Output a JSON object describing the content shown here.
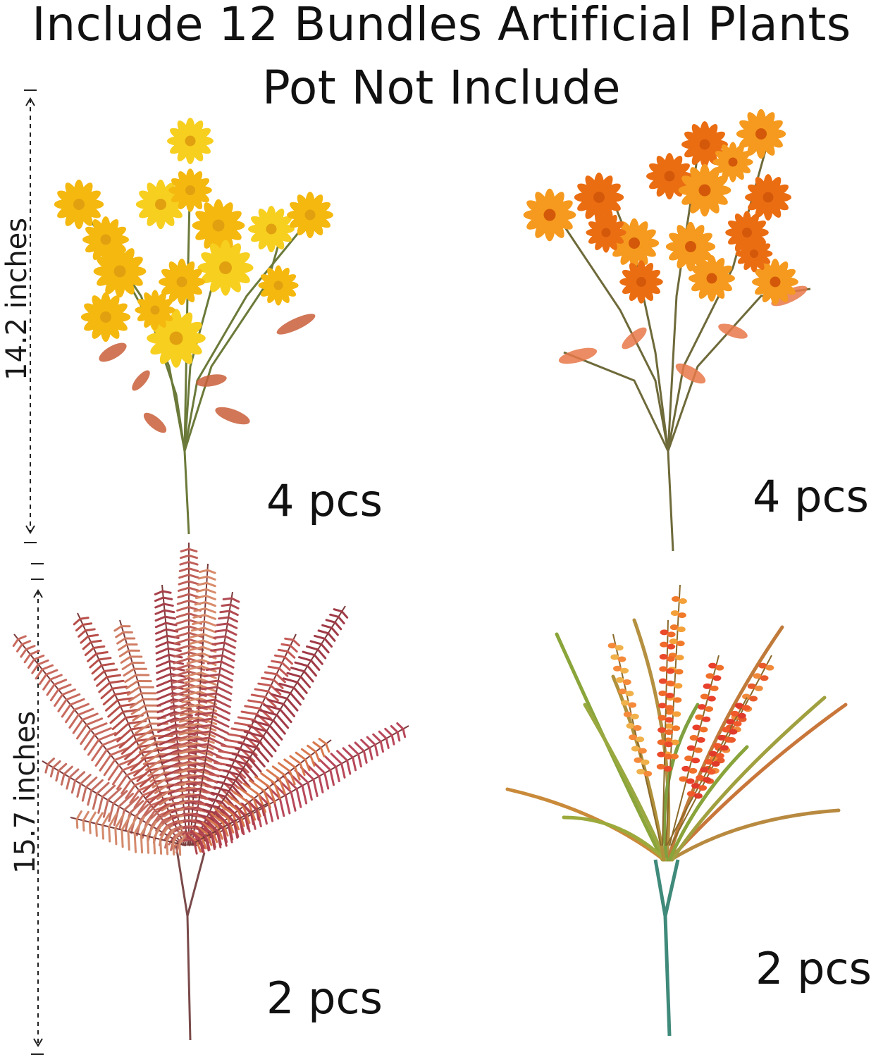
{
  "title": {
    "line1": "Include 12 Bundles Artificial Plants",
    "line2": "Pot Not Include"
  },
  "bundles": [
    {
      "name": "yellow daisy bundle",
      "count_label": "4 pcs",
      "color": "#f4c21a"
    },
    {
      "name": "orange daisy bundle",
      "count_label": "4 pcs",
      "color": "#f08a1c"
    },
    {
      "name": "red fern bundle",
      "count_label": "2 pcs",
      "color": "#b8524a"
    },
    {
      "name": "lavender grass bundle",
      "count_label": "2 pcs",
      "color": "#e8542a"
    }
  ],
  "dimensions": {
    "top_height": "14.2  inches",
    "bottom_height": "15.7  inches"
  },
  "colors": {
    "background": "#ffffff",
    "text": "#111111",
    "stem_green": "#4a7a3a",
    "stem_teal": "#3f8a7a"
  }
}
